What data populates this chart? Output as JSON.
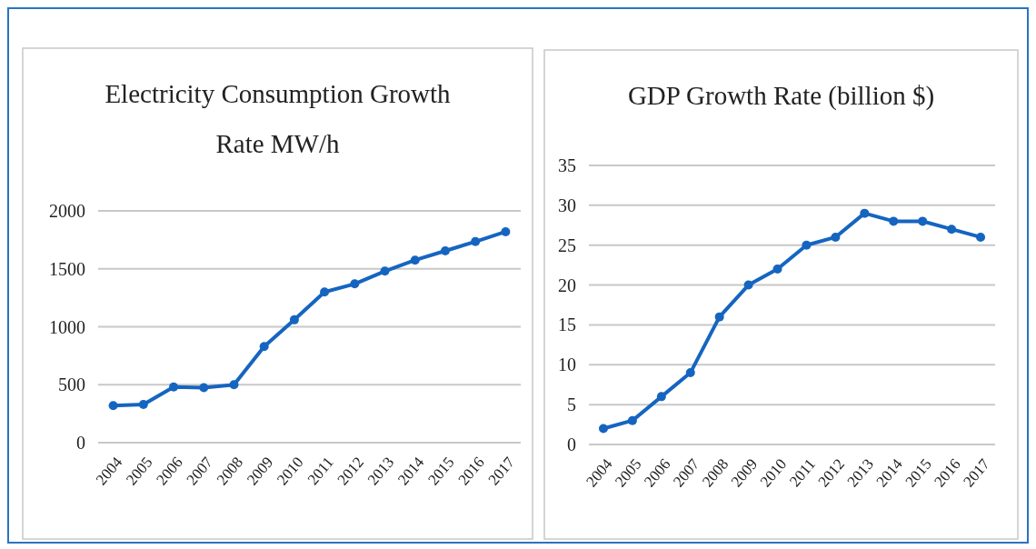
{
  "chart_data": [
    {
      "type": "line",
      "title": "Electricity Consumption Growth Rate MW/h",
      "categories": [
        "2004",
        "2005",
        "2006",
        "2007",
        "2008",
        "2009",
        "2010",
        "2011",
        "2012",
        "2013",
        "2014",
        "2015",
        "2016",
        "2017"
      ],
      "series": [
        {
          "color": "#1565c0",
          "values": [
            320,
            330,
            480,
            475,
            500,
            830,
            1060,
            1300,
            1370,
            1480,
            1575,
            1655,
            1735,
            1820
          ]
        }
      ],
      "ylim": [
        0,
        2000
      ],
      "yticks": [
        0,
        500,
        1000,
        1500,
        2000
      ],
      "grid": "y",
      "marker": "circle"
    },
    {
      "type": "line",
      "title": "GDP Growth Rate (billion $)",
      "categories": [
        "2004",
        "2005",
        "2006",
        "2007",
        "2008",
        "2009",
        "2010",
        "2011",
        "2012",
        "2013",
        "2014",
        "2015",
        "2016",
        "2017"
      ],
      "series": [
        {
          "color": "#1565c0",
          "values": [
            2,
            3,
            6,
            9,
            16,
            20,
            22,
            25,
            26,
            29,
            28,
            28,
            27,
            26
          ]
        }
      ],
      "ylim": [
        0,
        35
      ],
      "yticks": [
        0,
        5,
        10,
        15,
        20,
        25,
        30,
        35
      ],
      "grid": "y",
      "marker": "circle"
    }
  ]
}
